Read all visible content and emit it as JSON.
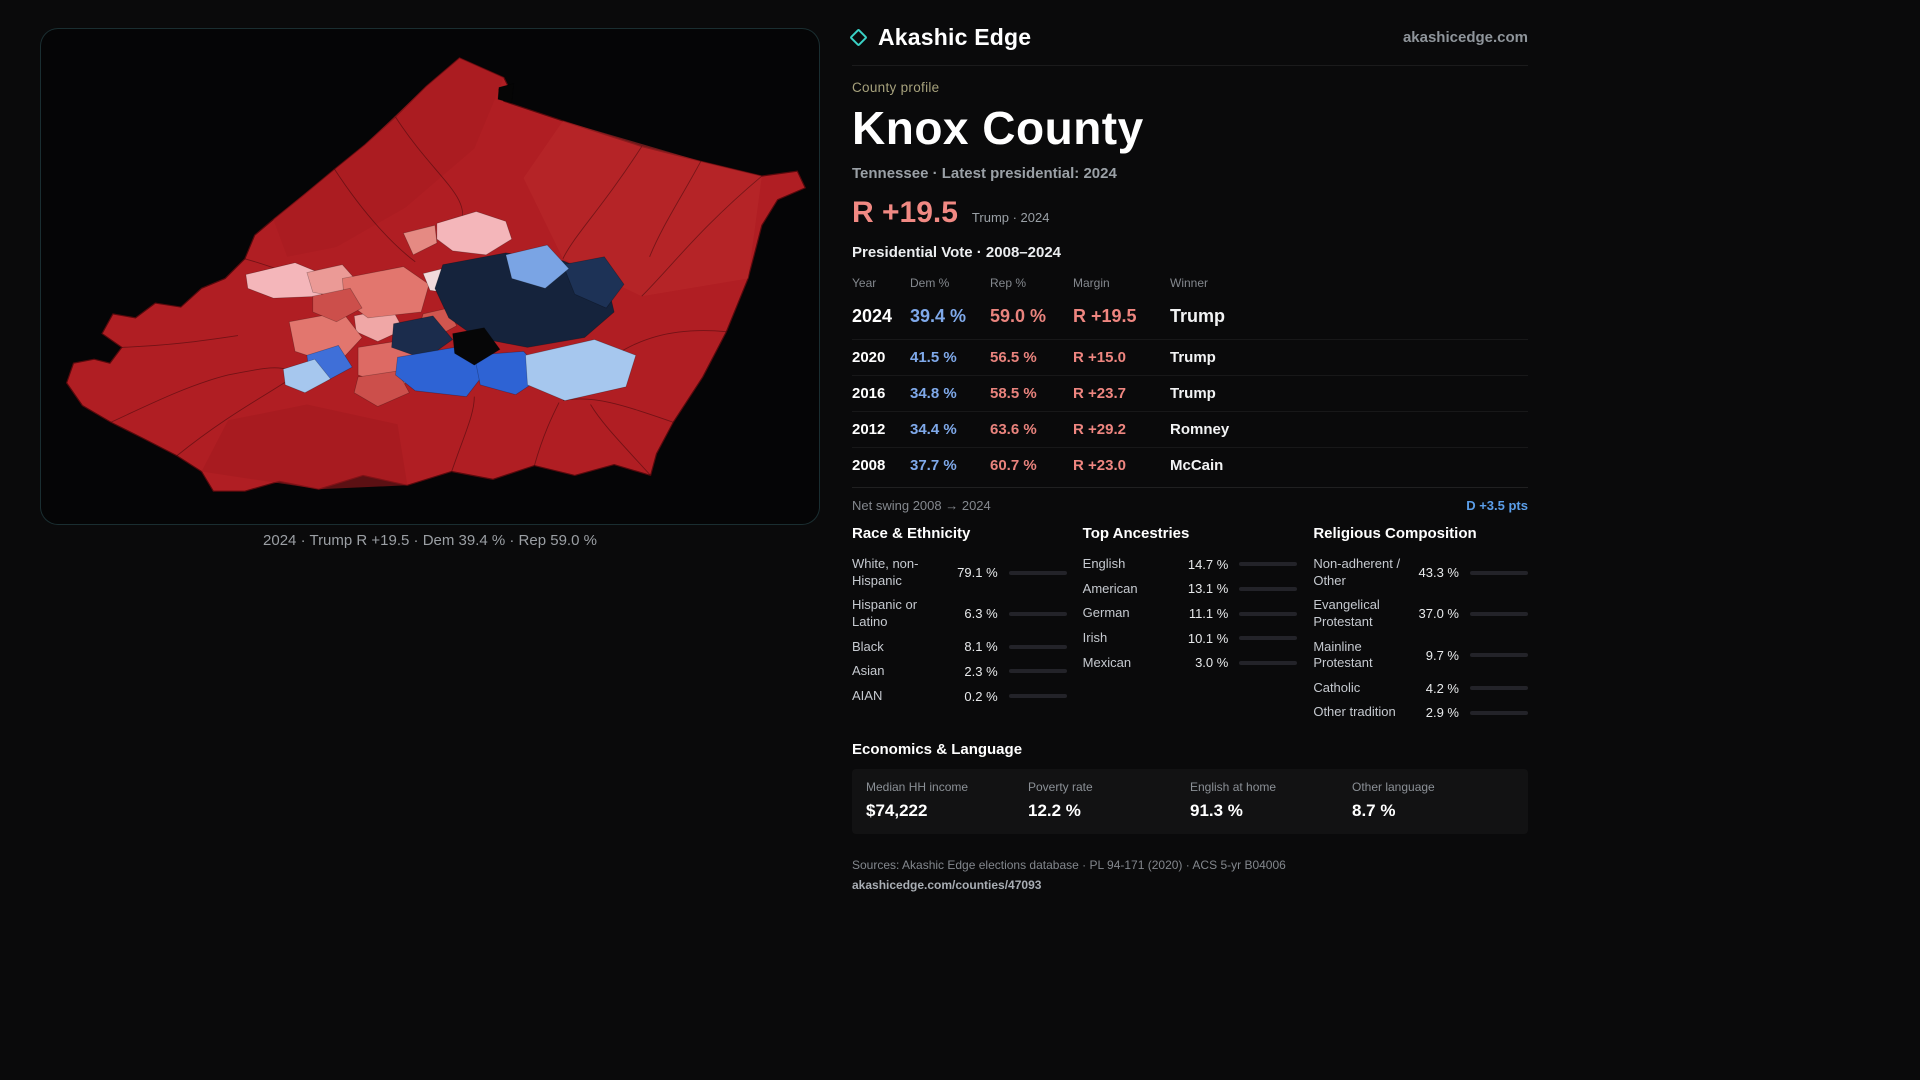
{
  "palette": {
    "accent": "#3ad1c5",
    "dem_blue": "#7fa9ea",
    "rep_red": "#e9837d"
  },
  "header": {
    "brand": "Akashic Edge",
    "site": "akashicedge.com"
  },
  "profile": {
    "kicker": "County profile",
    "title": "Knox County",
    "subtitle": "Tennessee · Latest presidential: 2024",
    "headline_margin": "R +19.5",
    "headline_note": "Trump · 2024"
  },
  "map": {
    "caption": "2024 · Trump R +19.5 · Dem 39.4 % · Rep 59.0 %"
  },
  "vote_table": {
    "title": "Presidential Vote · 2008–2024",
    "columns": [
      "Year",
      "Dem %",
      "Rep %",
      "Margin",
      "Winner"
    ],
    "rows": [
      {
        "year": "2024",
        "dem": "39.4 %",
        "rep": "59.0 %",
        "margin": "R +19.5",
        "winner": "Trump"
      },
      {
        "year": "2020",
        "dem": "41.5 %",
        "rep": "56.5 %",
        "margin": "R +15.0",
        "winner": "Trump"
      },
      {
        "year": "2016",
        "dem": "34.8 %",
        "rep": "58.5 %",
        "margin": "R +23.7",
        "winner": "Trump"
      },
      {
        "year": "2012",
        "dem": "34.4 %",
        "rep": "63.6 %",
        "margin": "R +29.2",
        "winner": "Romney"
      },
      {
        "year": "2008",
        "dem": "37.7 %",
        "rep": "60.7 %",
        "margin": "R +23.0",
        "winner": "McCain"
      }
    ]
  },
  "net_swing": {
    "label": "Net swing 2008 → 2024",
    "value": "D +3.5 pts"
  },
  "race": {
    "title": "Race & Ethnicity",
    "rows": [
      {
        "label": "White, non-Hispanic",
        "value": "79.1 %",
        "pct": 79.1,
        "color": "#a9aebc"
      },
      {
        "label": "Hispanic or Latino",
        "value": "6.3 %",
        "pct": 6.3,
        "color": "#e0a33c"
      },
      {
        "label": "Black",
        "value": "8.1 %",
        "pct": 8.1,
        "color": "#8f7ff0"
      },
      {
        "label": "Asian",
        "value": "2.3 %",
        "pct": 2.3,
        "color": "#3ec98e"
      },
      {
        "label": "AIAN",
        "value": "0.2 %",
        "pct": 0.2,
        "color": "#c9cdd6"
      }
    ]
  },
  "ancestries": {
    "title": "Top Ancestries",
    "rows": [
      {
        "label": "English",
        "value": "14.7 %",
        "pct": 14.7,
        "color": "#9aa2ab"
      },
      {
        "label": "American",
        "value": "13.1 %",
        "pct": 13.1,
        "color": "#9aa2ab"
      },
      {
        "label": "German",
        "value": "11.1 %",
        "pct": 11.1,
        "color": "#9aa2ab"
      },
      {
        "label": "Irish",
        "value": "10.1 %",
        "pct": 10.1,
        "color": "#9aa2ab"
      },
      {
        "label": "Mexican",
        "value": "3.0 %",
        "pct": 3.0,
        "color": "#d9a13c"
      }
    ]
  },
  "religion": {
    "title": "Religious Composition",
    "rows": [
      {
        "label": "Non-adherent / Other",
        "value": "43.3 %",
        "pct": 43.3,
        "color": "#9aa2ab"
      },
      {
        "label": "Evangelical Protestant",
        "value": "37.0 %",
        "pct": 37.0,
        "color": "#e98680"
      },
      {
        "label": "Mainline Protestant",
        "value": "9.7 %",
        "pct": 9.7,
        "color": "#5b8fe0"
      },
      {
        "label": "Catholic",
        "value": "4.2 %",
        "pct": 4.2,
        "color": "#e0b33c"
      },
      {
        "label": "Other tradition",
        "value": "2.9 %",
        "pct": 2.9,
        "color": "#d4d7db"
      }
    ]
  },
  "economics": {
    "title": "Economics & Language",
    "stats": [
      {
        "label": "Median HH income",
        "value": "$74,222"
      },
      {
        "label": "Poverty rate",
        "value": "12.2 %"
      },
      {
        "label": "English at home",
        "value": "91.3 %"
      },
      {
        "label": "Other language",
        "value": "8.7 %"
      }
    ]
  },
  "footer": {
    "sources": "Sources: Akashic Edge elections database · PL 94-171 (2020) · ACS 5-yr B04006",
    "permalink": "akashicedge.com/counties/47093"
  }
}
